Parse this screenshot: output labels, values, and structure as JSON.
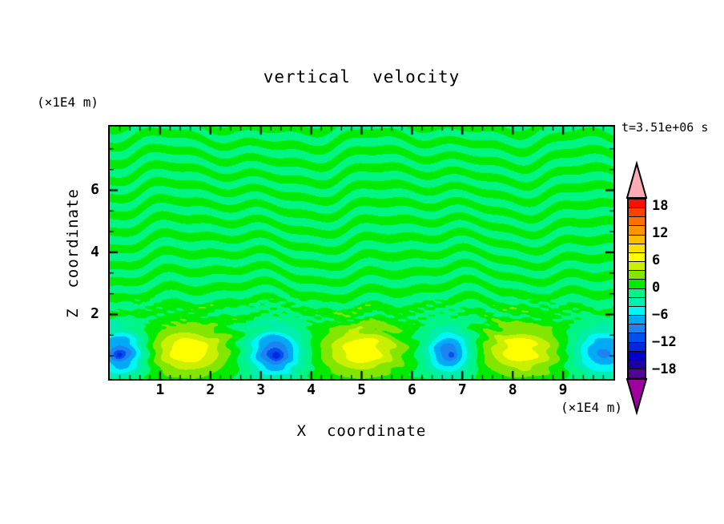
{
  "title": "vertical  velocity",
  "time_label": "t=3.51e+06 s",
  "axes": {
    "x": {
      "label": "X  coordinate",
      "unit_label": "(×1E4 m)",
      "min": 0,
      "max": 10,
      "major_tick_labels": [
        "1",
        "2",
        "3",
        "4",
        "5",
        "6",
        "7",
        "8",
        "9"
      ],
      "minor_per_major": 5
    },
    "z": {
      "label": "Z  coordinate",
      "unit_label": "(×1E4 m)",
      "min": 0,
      "max": 8,
      "major_tick_labels": [
        "6",
        "4",
        "2"
      ],
      "major_tick_values": [
        6,
        4,
        2
      ],
      "minor_divisions": 3
    }
  },
  "colorbar": {
    "labels": [
      "18",
      "12",
      "6",
      "0",
      "−6",
      "−12",
      "−18"
    ],
    "label_values": [
      18,
      12,
      6,
      0,
      -6,
      -12,
      -18
    ],
    "level_min": -20,
    "level_max": 20,
    "step": 2,
    "colors_high_to_low": [
      "#FF0F00",
      "#FF4100",
      "#FF6F00",
      "#FF9600",
      "#FFBC00",
      "#FFE100",
      "#FFFF00",
      "#C8F000",
      "#82E600",
      "#00EB00",
      "#00F584",
      "#00EFAC",
      "#00F5F5",
      "#00AAF5",
      "#1E82F0",
      "#0050F0",
      "#0028DC",
      "#0000C8",
      "#1E00A0",
      "#550096"
    ],
    "over_color": "#FFAAB4",
    "under_color": "#A000A0",
    "border_color": "#000000"
  },
  "chart_data": {
    "type": "contour",
    "field_name": "vertical velocity",
    "time": "t=3.51e+06 s",
    "x_range_1e4_m": [
      0,
      10
    ],
    "z_range_1e4_m": [
      0,
      8.05
    ],
    "contour_interval": 2,
    "level_min": -20,
    "level_max": 20,
    "background_field": {
      "description": "weak near-zero oscillations |w|<2 forming horizontally elongated streaks that alternate between the 0..2 (green) and -2..0 (spring green) bands; fine speckle near z≈2",
      "amplitude": 1.7,
      "streak_thickness_z": 0.27
    },
    "convection_cells": [
      {
        "x": 0.22,
        "z": 0.78,
        "peak": -10,
        "sx": 0.34,
        "sz": 0.5,
        "type": "downdraft"
      },
      {
        "x": 0.18,
        "z": 0.7,
        "peak": -3,
        "sx": 0.07,
        "sz": 0.1,
        "type": "downdraft-core"
      },
      {
        "x": 1.55,
        "z": 0.85,
        "peak": 7.6,
        "sx": 0.55,
        "sz": 0.55,
        "type": "updraft"
      },
      {
        "x": 3.27,
        "z": 0.78,
        "peak": -10.5,
        "sx": 0.37,
        "sz": 0.52,
        "type": "downdraft"
      },
      {
        "x": 3.3,
        "z": 0.65,
        "peak": -3,
        "sx": 0.08,
        "sz": 0.12,
        "type": "downdraft-core"
      },
      {
        "x": 5.0,
        "z": 0.85,
        "peak": 7.6,
        "sx": 0.55,
        "sz": 0.55,
        "type": "updraft"
      },
      {
        "x": 6.73,
        "z": 0.8,
        "peak": -9.5,
        "sx": 0.32,
        "sz": 0.5,
        "type": "downdraft"
      },
      {
        "x": 6.78,
        "z": 0.7,
        "peak": -2.5,
        "sx": 0.05,
        "sz": 0.08,
        "type": "downdraft-core"
      },
      {
        "x": 8.15,
        "z": 0.85,
        "peak": 7.3,
        "sx": 0.55,
        "sz": 0.55,
        "type": "updraft"
      },
      {
        "x": 9.8,
        "z": 0.8,
        "peak": -8.5,
        "sx": 0.42,
        "sz": 0.52,
        "type": "downdraft"
      }
    ]
  }
}
